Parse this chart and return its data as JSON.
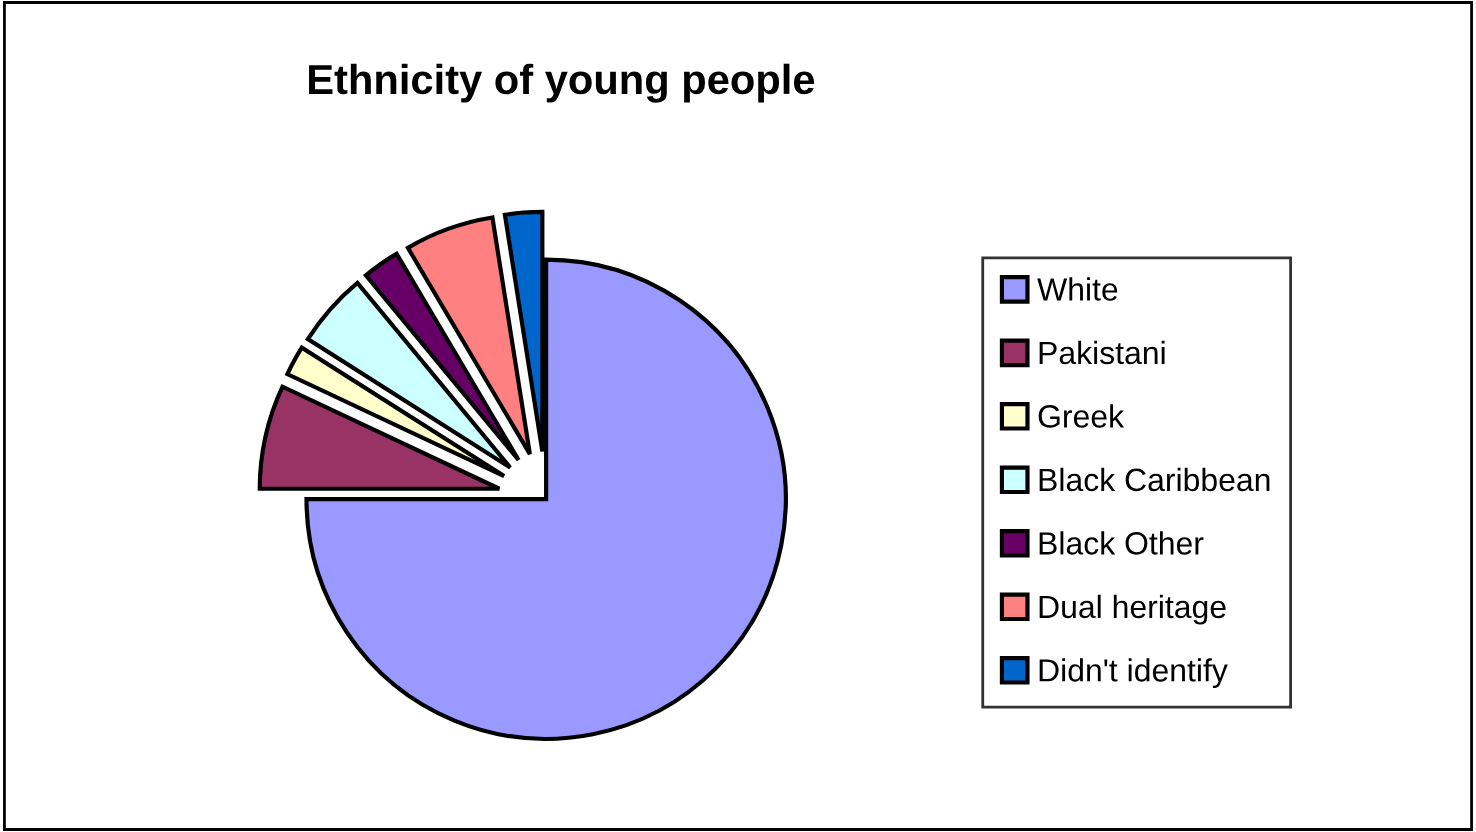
{
  "chart_data": {
    "type": "pie",
    "title": "Ethnicity of young people",
    "categories": [
      "White",
      "Pakistani",
      "Greek",
      "Black Caribbean",
      "Black Other",
      "Dual heritage",
      "Didn't identify"
    ],
    "values": [
      75,
      7,
      2,
      5,
      2.5,
      6,
      2.5
    ],
    "colors": [
      "#9999ff",
      "#993366",
      "#ffffcc",
      "#ccffff",
      "#660066",
      "#ff8080",
      "#0066cc"
    ],
    "legend": "right"
  }
}
